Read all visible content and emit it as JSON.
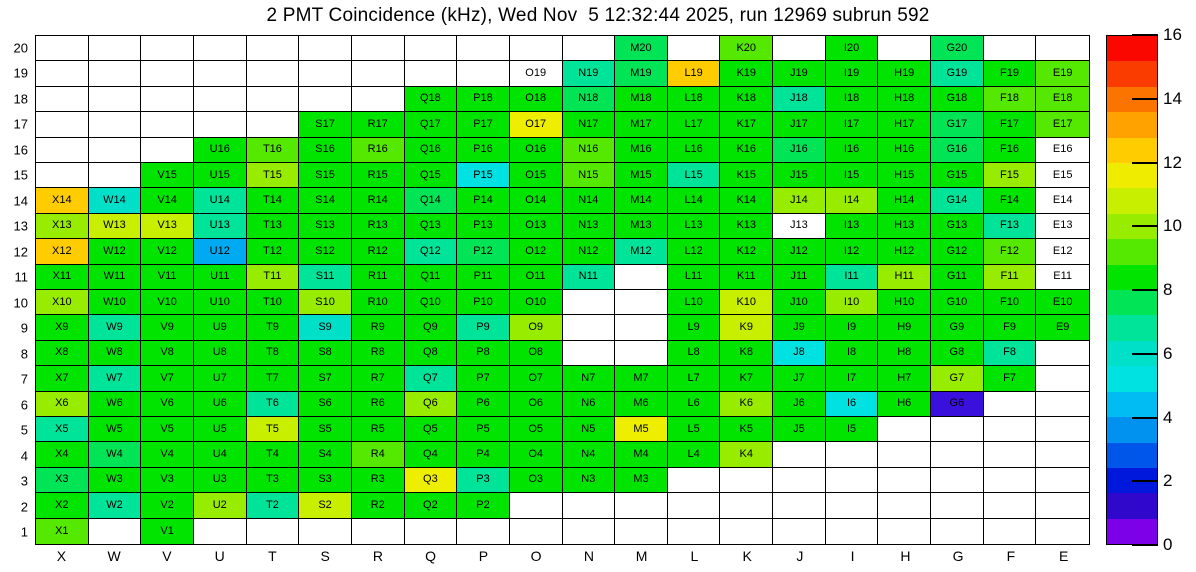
{
  "title": "2 PMT Coincidence (kHz), Wed Nov  5 12:32:44 2025, run 12969 subrun 592",
  "chart_data": {
    "type": "heatmap",
    "x_categories": [
      "X",
      "W",
      "V",
      "U",
      "T",
      "S",
      "R",
      "Q",
      "P",
      "O",
      "N",
      "M",
      "L",
      "K",
      "J",
      "I",
      "H",
      "G",
      "F",
      "E"
    ],
    "y_categories_top_to_bottom": [
      "20",
      "19",
      "18",
      "17",
      "16",
      "15",
      "14",
      "13",
      "12",
      "11",
      "10",
      "9",
      "8",
      "7",
      "6",
      "5",
      "4",
      "3",
      "2",
      "1"
    ],
    "cell_label_rule": "column letter + row number (e.g. X14); empty string = blank white cell; key W = white cell with label (no data)",
    "palette": {
      "G": {
        "color": "#00e400",
        "approx_value": 8.4
      },
      "G2": {
        "color": "#00e455",
        "approx_value": 7.6
      },
      "M": {
        "color": "#00e49a",
        "approx_value": 6.8
      },
      "T": {
        "color": "#00e0c8",
        "approx_value": 6.0
      },
      "C": {
        "color": "#00e2e2",
        "approx_value": 5.2
      },
      "B": {
        "color": "#00aaf2",
        "approx_value": 4.4
      },
      "V": {
        "color": "#3a10dc",
        "approx_value": 1.2
      },
      "Y1": {
        "color": "#55e800",
        "approx_value": 9.2
      },
      "Y2": {
        "color": "#98ec00",
        "approx_value": 10.0
      },
      "Y3": {
        "color": "#c8ee00",
        "approx_value": 10.8
      },
      "Y4": {
        "color": "#eeee00",
        "approx_value": 11.6
      },
      "Y5": {
        "color": "#ffcc00",
        "approx_value": 12.4
      },
      "W": {
        "color": "#ffffff",
        "approx_value": null
      }
    },
    "cells": [
      [
        "",
        "",
        "",
        "",
        "",
        "",
        "",
        "",
        "",
        "",
        "",
        "G2",
        "",
        "Y1",
        "",
        "G",
        "",
        "G2",
        "",
        ""
      ],
      [
        "",
        "",
        "",
        "",
        "",
        "",
        "",
        "",
        "",
        "W",
        "M",
        "G2",
        "Y5",
        "G",
        "G",
        "G",
        "G",
        "M",
        "G",
        "Y1"
      ],
      [
        "",
        "",
        "",
        "",
        "",
        "",
        "",
        "G",
        "G",
        "G",
        "G2",
        "G",
        "G",
        "G",
        "M",
        "G",
        "G",
        "G",
        "Y1",
        "Y1"
      ],
      [
        "",
        "",
        "",
        "",
        "",
        "G",
        "G",
        "G",
        "G",
        "Y4",
        "G",
        "G",
        "G",
        "G",
        "G",
        "G",
        "G",
        "G2",
        "G",
        "Y1"
      ],
      [
        "",
        "",
        "",
        "G",
        "Y1",
        "G",
        "Y1",
        "G",
        "G",
        "G",
        "Y1",
        "G",
        "G",
        "G",
        "G2",
        "G",
        "G",
        "G2",
        "G",
        "W"
      ],
      [
        "",
        "",
        "G",
        "G",
        "Y2",
        "G",
        "G",
        "G",
        "C",
        "G",
        "Y1",
        "G",
        "M",
        "G",
        "G",
        "G",
        "G",
        "G",
        "Y2",
        "W"
      ],
      [
        "Y5",
        "T",
        "G",
        "M",
        "G",
        "G",
        "G",
        "G2",
        "G",
        "G",
        "G",
        "G",
        "G",
        "G",
        "Y2",
        "Y2",
        "G",
        "M",
        "G",
        "W"
      ],
      [
        "Y2",
        "Y3",
        "Y3",
        "M",
        "G",
        "G",
        "G",
        "G",
        "G",
        "G",
        "G",
        "G",
        "G",
        "G",
        "W",
        "G",
        "G",
        "G",
        "M",
        "W"
      ],
      [
        "Y5",
        "G",
        "G",
        "B",
        "G",
        "G",
        "G",
        "M",
        "G2",
        "G",
        "G",
        "M",
        "G",
        "G",
        "G",
        "G",
        "G",
        "G",
        "Y1",
        "W"
      ],
      [
        "G",
        "G",
        "G",
        "G",
        "Y2",
        "M",
        "G",
        "G",
        "G",
        "G",
        "M",
        "",
        "G",
        "G",
        "G",
        "M",
        "Y2",
        "G",
        "Y2",
        "W"
      ],
      [
        "Y2",
        "G",
        "G",
        "G",
        "G",
        "Y2",
        "G",
        "G",
        "G",
        "G",
        "",
        "",
        "G",
        "Y3",
        "G",
        "Y2",
        "G",
        "G",
        "G",
        "G"
      ],
      [
        "G",
        "M",
        "G",
        "G",
        "G",
        "T",
        "G",
        "G",
        "M",
        "Y2",
        "",
        "",
        "G",
        "Y3",
        "G",
        "G",
        "G",
        "G",
        "G",
        "G"
      ],
      [
        "G",
        "G",
        "G",
        "G",
        "G",
        "G",
        "G",
        "G",
        "G",
        "G",
        "",
        "",
        "G",
        "G",
        "C",
        "G",
        "G",
        "G",
        "M",
        ""
      ],
      [
        "G",
        "M",
        "G",
        "G",
        "G",
        "G",
        "G",
        "M",
        "G",
        "G",
        "G",
        "G",
        "G",
        "G",
        "G",
        "G",
        "G",
        "Y2",
        "G",
        ""
      ],
      [
        "Y2",
        "G",
        "G",
        "G",
        "M",
        "G",
        "G",
        "Y2",
        "G",
        "G",
        "G",
        "G",
        "G",
        "Y2",
        "G",
        "C",
        "G",
        "V",
        "",
        ""
      ],
      [
        "M",
        "G",
        "G",
        "G",
        "Y3",
        "G",
        "G",
        "G",
        "G",
        "G",
        "G",
        "Y4",
        "G",
        "G",
        "G",
        "G",
        "",
        "",
        "",
        ""
      ],
      [
        "G",
        "G2",
        "G",
        "G",
        "G",
        "G",
        "Y1",
        "G",
        "G",
        "G",
        "G",
        "G",
        "G",
        "Y2",
        "",
        "",
        "",
        "",
        "",
        ""
      ],
      [
        "G2",
        "G",
        "G",
        "G",
        "G",
        "G",
        "G",
        "Y4",
        "M",
        "G",
        "G",
        "G",
        "",
        "",
        "",
        "",
        "",
        "",
        "",
        ""
      ],
      [
        "G",
        "M",
        "G",
        "Y2",
        "M",
        "Y3",
        "G",
        "G",
        "G",
        "",
        "",
        "",
        "",
        "",
        "",
        "",
        "",
        "",
        "",
        ""
      ],
      [
        "Y1",
        "",
        "G",
        "",
        "",
        "",
        "",
        "",
        "",
        "",
        "",
        "",
        "",
        "",
        "",
        "",
        "",
        "",
        "",
        ""
      ]
    ],
    "colorbar": {
      "min": 0,
      "max": 16,
      "tick_labels": [
        "16",
        "14",
        "12",
        "10",
        "8",
        "6",
        "4",
        "2",
        "0"
      ],
      "band_colors_top_to_bottom": [
        "#fa0800",
        "#fa3c00",
        "#fc7400",
        "#ffa200",
        "#ffcc00",
        "#f0ec00",
        "#c8ee00",
        "#98ec00",
        "#55e800",
        "#00e400",
        "#00e455",
        "#00e49a",
        "#00e0c8",
        "#00e2e2",
        "#00bcf2",
        "#0092ee",
        "#0056e8",
        "#0018dc",
        "#3008cc",
        "#7c00e8"
      ]
    },
    "grid_on": true,
    "legend_position": "right-colorbar"
  }
}
